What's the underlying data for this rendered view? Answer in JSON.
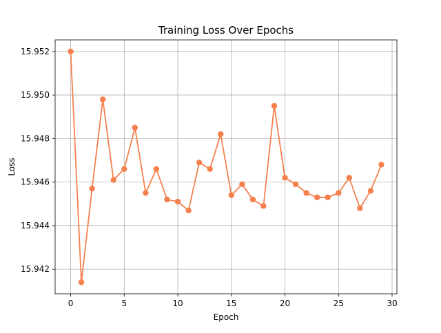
{
  "chart_data": {
    "type": "line",
    "title": "Training Loss Over Epochs",
    "xlabel": "Epoch",
    "ylabel": "Loss",
    "xlim": [
      -1.45,
      30.45
    ],
    "ylim": [
      15.94087,
      15.95253
    ],
    "xticks": [
      0,
      5,
      10,
      15,
      20,
      25,
      30
    ],
    "xtick_labels": [
      "0",
      "5",
      "10",
      "15",
      "20",
      "25",
      "30"
    ],
    "yticks": [
      15.942,
      15.944,
      15.946,
      15.948,
      15.95,
      15.952
    ],
    "ytick_labels": [
      "15.942",
      "15.944",
      "15.946",
      "15.948",
      "15.950",
      "15.952"
    ],
    "grid": true,
    "line_color": "#f5804d",
    "marker": "circle",
    "series": [
      {
        "x": [
          0,
          1,
          2,
          3,
          4,
          5,
          6,
          7,
          8,
          9,
          10,
          11,
          12,
          13,
          14,
          15,
          16,
          17,
          18,
          19,
          20,
          21,
          22,
          23,
          24,
          25,
          26,
          27,
          28,
          29
        ],
        "values": [
          15.952,
          15.9414,
          15.9457,
          15.9498,
          15.9461,
          15.9466,
          15.9485,
          15.9455,
          15.9466,
          15.9452,
          15.9451,
          15.9447,
          15.9469,
          15.9466,
          15.9482,
          15.9454,
          15.9459,
          15.9452,
          15.9449,
          15.9495,
          15.9462,
          15.9459,
          15.9455,
          15.9453,
          15.9453,
          15.9455,
          15.9462,
          15.9448,
          15.9456,
          15.9468
        ]
      }
    ]
  }
}
